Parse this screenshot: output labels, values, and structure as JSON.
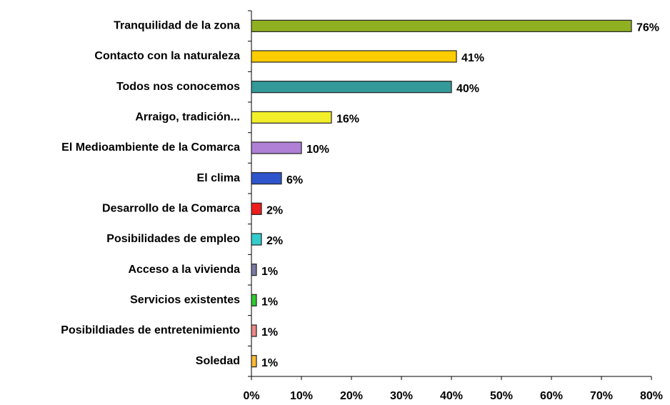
{
  "chart_data": {
    "type": "bar",
    "orientation": "horizontal",
    "categories": [
      "Tranquilidad de la zona",
      "Contacto con la naturaleza",
      "Todos nos conocemos",
      "Arraigo, tradición...",
      "El Medioambiente de la Comarca",
      "El clima",
      "Desarrollo de la Comarca",
      "Posibilidades de empleo",
      "Acceso a la vivienda",
      "Servicios existentes",
      "Posibildiades de entretenimiento",
      "Soledad"
    ],
    "values": [
      76,
      41,
      40,
      16,
      10,
      6,
      2,
      2,
      1,
      1,
      1,
      1
    ],
    "value_labels": [
      "76%",
      "41%",
      "40%",
      "16%",
      "10%",
      "6%",
      "2%",
      "2%",
      "1%",
      "1%",
      "1%",
      "1%"
    ],
    "colors": [
      "#8fb021",
      "#ffcc00",
      "#339999",
      "#f2ee2a",
      "#b07fd6",
      "#2f55cc",
      "#ee1c1c",
      "#33cccc",
      "#7a7aa6",
      "#2ecc2e",
      "#ee8888",
      "#ffbb33"
    ],
    "xlim": [
      0,
      80
    ],
    "xticks": [
      {
        "value": 0,
        "label": "0%"
      },
      {
        "value": 10,
        "label": "10%"
      },
      {
        "value": 20,
        "label": "20%"
      },
      {
        "value": 30,
        "label": "30%"
      },
      {
        "value": 40,
        "label": "40%"
      },
      {
        "value": 50,
        "label": "50%"
      },
      {
        "value": 60,
        "label": "60%"
      },
      {
        "value": 70,
        "label": "70%"
      },
      {
        "value": 80,
        "label": "80%"
      }
    ],
    "grid": false
  }
}
